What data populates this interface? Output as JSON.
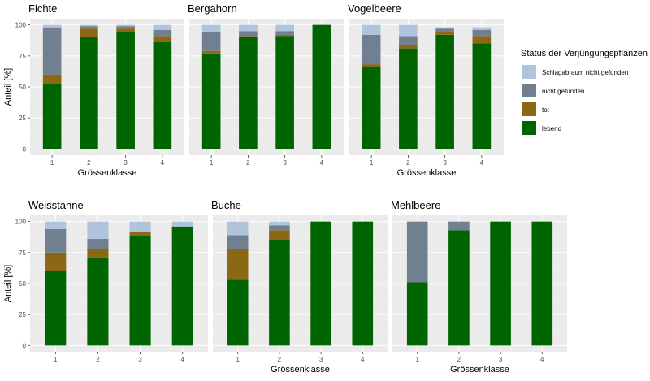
{
  "figure": {
    "ylabel": "Anteil [%]",
    "xlabel": "Grössenklasse",
    "legend": {
      "title": "Status der Verjüngungspflanzen",
      "entries": [
        {
          "name": "Schlagabraum nicht gefunden",
          "color": "#b0c4de"
        },
        {
          "name": "nicht gefunden",
          "color": "#708090"
        },
        {
          "name": "tot",
          "color": "#8b6914"
        },
        {
          "name": "lebend",
          "color": "#006400"
        }
      ]
    }
  },
  "chart_data": [
    {
      "type": "bar",
      "stacked": true,
      "title": "Fichte",
      "categories": [
        "1",
        "2",
        "3",
        "4"
      ],
      "xlabel": "Grössenklasse",
      "ylabel": "Anteil [%]",
      "ylim": [
        0,
        100
      ],
      "yticks": [
        0,
        25,
        50,
        75,
        100
      ],
      "series": [
        {
          "name": "lebend",
          "values": [
            52,
            90,
            94,
            86
          ]
        },
        {
          "name": "tot",
          "values": [
            8,
            7,
            3,
            5
          ]
        },
        {
          "name": "nicht gefunden",
          "values": [
            38,
            2,
            2,
            5
          ]
        },
        {
          "name": "Schlagabraum nicht gefunden",
          "values": [
            2,
            1,
            1,
            4
          ]
        }
      ]
    },
    {
      "type": "bar",
      "stacked": true,
      "title": "Bergahorn",
      "categories": [
        "1",
        "2",
        "3",
        "4"
      ],
      "xlabel": "",
      "ylabel": "",
      "ylim": [
        0,
        100
      ],
      "yticks": [
        0,
        25,
        50,
        75,
        100
      ],
      "series": [
        {
          "name": "lebend",
          "values": [
            77,
            90,
            91,
            100
          ]
        },
        {
          "name": "tot",
          "values": [
            2,
            1,
            1,
            0
          ]
        },
        {
          "name": "nicht gefunden",
          "values": [
            15,
            4,
            3,
            0
          ]
        },
        {
          "name": "Schlagabraum nicht gefunden",
          "values": [
            6,
            5,
            5,
            0
          ]
        }
      ]
    },
    {
      "type": "bar",
      "stacked": true,
      "title": "Vogelbeere",
      "categories": [
        "1",
        "2",
        "3",
        "4"
      ],
      "xlabel": "Grössenklasse",
      "ylabel": "",
      "ylim": [
        0,
        100
      ],
      "yticks": [
        0,
        25,
        50,
        75,
        100
      ],
      "series": [
        {
          "name": "lebend",
          "values": [
            66,
            81,
            92,
            85
          ]
        },
        {
          "name": "tot",
          "values": [
            2,
            3,
            3,
            6
          ]
        },
        {
          "name": "nicht gefunden",
          "values": [
            24,
            7,
            2,
            5
          ]
        },
        {
          "name": "Schlagabraum nicht gefunden",
          "values": [
            8,
            9,
            1,
            2
          ]
        }
      ]
    },
    {
      "type": "bar",
      "stacked": true,
      "title": "Weisstanne",
      "categories": [
        "1",
        "2",
        "3",
        "4"
      ],
      "xlabel": "",
      "ylabel": "Anteil [%]",
      "ylim": [
        0,
        100
      ],
      "yticks": [
        0,
        25,
        50,
        75,
        100
      ],
      "series": [
        {
          "name": "lebend",
          "values": [
            60,
            71,
            88,
            96
          ]
        },
        {
          "name": "tot",
          "values": [
            15,
            7,
            4,
            0
          ]
        },
        {
          "name": "nicht gefunden",
          "values": [
            19,
            8,
            0,
            0
          ]
        },
        {
          "name": "Schlagabraum nicht gefunden",
          "values": [
            6,
            14,
            8,
            4
          ]
        }
      ]
    },
    {
      "type": "bar",
      "stacked": true,
      "title": "Buche",
      "categories": [
        "1",
        "2",
        "3",
        "4"
      ],
      "xlabel": "Grössenklasse",
      "ylabel": "",
      "ylim": [
        0,
        100
      ],
      "yticks": [
        0,
        25,
        50,
        75,
        100
      ],
      "series": [
        {
          "name": "lebend",
          "values": [
            53,
            85,
            100,
            100
          ]
        },
        {
          "name": "tot",
          "values": [
            25,
            8,
            0,
            0
          ]
        },
        {
          "name": "nicht gefunden",
          "values": [
            11,
            4,
            0,
            0
          ]
        },
        {
          "name": "Schlagabraum nicht gefunden",
          "values": [
            11,
            3,
            0,
            0
          ]
        }
      ]
    },
    {
      "type": "bar",
      "stacked": true,
      "title": "Mehlbeere",
      "categories": [
        "1",
        "2",
        "3",
        "4"
      ],
      "xlabel": "Grössenklasse",
      "ylabel": "",
      "ylim": [
        0,
        100
      ],
      "yticks": [
        0,
        25,
        50,
        75,
        100
      ],
      "series": [
        {
          "name": "lebend",
          "values": [
            51,
            93,
            100,
            100
          ]
        },
        {
          "name": "tot",
          "values": [
            0,
            0,
            0,
            0
          ]
        },
        {
          "name": "nicht gefunden",
          "values": [
            49,
            7,
            0,
            0
          ]
        },
        {
          "name": "Schlagabraum nicht gefunden",
          "values": [
            0,
            0,
            0,
            0
          ]
        }
      ]
    }
  ]
}
